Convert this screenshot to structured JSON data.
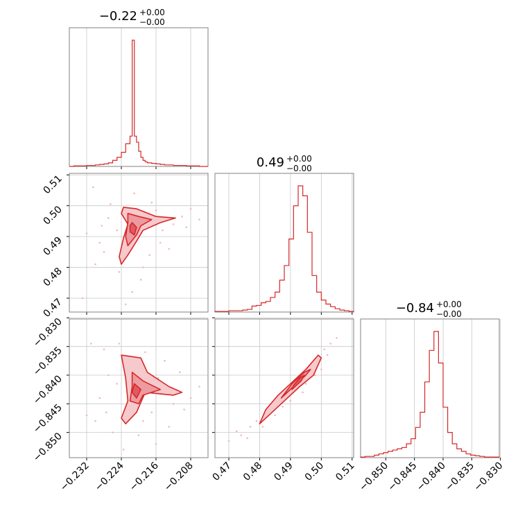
{
  "colors": {
    "accent": "#d62728",
    "fill_light": "#f6c9cc",
    "fill_mid": "#ec9ba0",
    "fill_dark": "#df5a62",
    "scatter": "#f2b8bb"
  },
  "chart_data": {
    "type": "corner",
    "parameters": [
      {
        "id": "p1",
        "title": {
          "value": "−0.22",
          "sup": "+0.00",
          "sub": "−0.00"
        },
        "range": [
          -0.236,
          -0.204
        ],
        "ticks": [
          -0.232,
          -0.224,
          -0.216,
          -0.208
        ],
        "tick_labels": [
          "−0.232",
          "−0.224",
          "−0.216",
          "−0.208"
        ]
      },
      {
        "id": "p2",
        "title": {
          "value": "0.49",
          "sup": "+0.00",
          "sub": "−0.00"
        },
        "range": [
          0.4655,
          0.5105
        ],
        "ticks": [
          0.47,
          0.48,
          0.49,
          0.5,
          0.51
        ],
        "tick_labels": [
          "0.47",
          "0.48",
          "0.49",
          "0.50",
          "0.51"
        ]
      },
      {
        "id": "p3",
        "title": {
          "value": "−0.84",
          "sup": "+0.00",
          "sub": "−0.00"
        },
        "range": [
          -0.8544,
          -0.8302
        ],
        "ticks": [
          -0.85,
          -0.845,
          -0.84,
          -0.835,
          -0.83
        ],
        "tick_labels": [
          "−0.850",
          "−0.845",
          "−0.840",
          "−0.835",
          "−0.830"
        ]
      }
    ],
    "histograms": [
      {
        "param": "p1",
        "bins": [
          -0.236,
          -0.235,
          -0.234,
          -0.233,
          -0.232,
          -0.231,
          -0.23,
          -0.229,
          -0.228,
          -0.227,
          -0.226,
          -0.225,
          -0.224,
          -0.223,
          -0.222,
          -0.2215,
          -0.221,
          -0.2205,
          -0.22,
          -0.2195,
          -0.219,
          -0.2185,
          -0.218,
          -0.217,
          -0.216,
          -0.215,
          -0.214,
          -0.213,
          -0.212,
          -0.211,
          -0.21,
          -0.209,
          -0.208,
          -0.207,
          -0.206,
          -0.205,
          -0.204
        ],
        "counts": [
          0,
          1,
          1,
          1,
          2,
          2,
          3,
          4,
          5,
          7,
          12,
          18,
          28,
          45,
          60,
          250,
          60,
          48,
          30,
          18,
          12,
          9,
          7,
          6,
          5,
          4,
          3,
          3,
          2,
          2,
          2,
          1,
          1,
          1,
          0,
          0
        ]
      },
      {
        "param": "p2",
        "bins": [
          0.4655,
          0.467,
          0.4685,
          0.47,
          0.4715,
          0.473,
          0.4745,
          0.476,
          0.4775,
          0.479,
          0.4805,
          0.482,
          0.4835,
          0.485,
          0.4865,
          0.488,
          0.4895,
          0.491,
          0.4925,
          0.494,
          0.4955,
          0.497,
          0.4985,
          0.5,
          0.5015,
          0.503,
          0.5045,
          0.506,
          0.5075,
          0.509,
          0.5105
        ],
        "counts": [
          1,
          1,
          1,
          2,
          2,
          2,
          3,
          4,
          9,
          10,
          14,
          16,
          22,
          30,
          48,
          70,
          110,
          160,
          190,
          175,
          120,
          55,
          30,
          18,
          12,
          8,
          5,
          3,
          2,
          1
        ]
      },
      {
        "param": "p3",
        "bins": [
          -0.8544,
          -0.8536,
          -0.8528,
          -0.852,
          -0.8512,
          -0.8504,
          -0.8496,
          -0.8488,
          -0.848,
          -0.8472,
          -0.8464,
          -0.8456,
          -0.8448,
          -0.844,
          -0.8432,
          -0.8424,
          -0.8416,
          -0.8408,
          -0.84,
          -0.8392,
          -0.8384,
          -0.8376,
          -0.8368,
          -0.836,
          -0.8352,
          -0.8344,
          -0.8336,
          -0.8328,
          -0.832,
          -0.8312,
          -0.8302
        ],
        "counts": [
          1,
          2,
          2,
          4,
          6,
          8,
          10,
          12,
          14,
          16,
          22,
          30,
          48,
          72,
          120,
          170,
          200,
          150,
          80,
          40,
          22,
          14,
          10,
          6,
          4,
          3,
          2,
          1,
          1,
          1
        ]
      }
    ],
    "contours_2d": [
      {
        "x_param": "p1",
        "y_param": "p2",
        "levels": [
          [
            [
              -0.2235,
              0.4995
            ],
            [
              -0.2205,
              0.499
            ],
            [
              -0.216,
              0.4965
            ],
            [
              -0.2115,
              0.496
            ],
            [
              -0.215,
              0.4945
            ],
            [
              -0.219,
              0.492
            ],
            [
              -0.2205,
              0.4885
            ],
            [
              -0.2225,
              0.484
            ],
            [
              -0.224,
              0.481
            ],
            [
              -0.2245,
              0.4835
            ],
            [
              -0.2235,
              0.4895
            ],
            [
              -0.2225,
              0.494
            ],
            [
              -0.224,
              0.4975
            ]
          ],
          [
            [
              -0.2225,
              0.4975
            ],
            [
              -0.22,
              0.4965
            ],
            [
              -0.217,
              0.4955
            ],
            [
              -0.2195,
              0.4935
            ],
            [
              -0.2205,
              0.4905
            ],
            [
              -0.2225,
              0.487
            ],
            [
              -0.223,
              0.49
            ],
            [
              -0.2225,
              0.4945
            ]
          ],
          [
            [
              -0.2215,
              0.4945
            ],
            [
              -0.2205,
              0.493
            ],
            [
              -0.221,
              0.4905
            ],
            [
              -0.222,
              0.4915
            ],
            [
              -0.222,
              0.4935
            ]
          ]
        ],
        "points": [
          [
            -0.2305,
            0.506
          ],
          [
            -0.228,
            0.485
          ],
          [
            -0.233,
            0.47
          ],
          [
            -0.2265,
            0.5005
          ],
          [
            -0.23,
            0.481
          ],
          [
            -0.217,
            0.501
          ],
          [
            -0.215,
            0.488
          ],
          [
            -0.212,
            0.494
          ],
          [
            -0.21,
            0.4965
          ],
          [
            -0.209,
            0.493
          ],
          [
            -0.219,
            0.48
          ],
          [
            -0.225,
            0.492
          ],
          [
            -0.227,
            0.496
          ],
          [
            -0.232,
            0.491
          ],
          [
            -0.221,
            0.504
          ],
          [
            -0.2195,
            0.476
          ],
          [
            -0.2245,
            0.4785
          ],
          [
            -0.213,
            0.486
          ],
          [
            -0.208,
            0.499
          ],
          [
            -0.2215,
            0.472
          ],
          [
            -0.2285,
            0.4935
          ],
          [
            -0.216,
            0.4985
          ],
          [
            -0.223,
            0.468
          ],
          [
            -0.2175,
            0.484
          ],
          [
            -0.206,
            0.4955
          ],
          [
            -0.229,
            0.488
          ],
          [
            -0.2205,
            0.498
          ],
          [
            -0.2145,
            0.492
          ]
        ]
      },
      {
        "x_param": "p1",
        "y_param": "p3",
        "levels": [
          [
            [
              -0.224,
              -0.8365
            ],
            [
              -0.2195,
              -0.837
            ],
            [
              -0.218,
              -0.8395
            ],
            [
              -0.213,
              -0.842
            ],
            [
              -0.21,
              -0.843
            ],
            [
              -0.212,
              -0.8435
            ],
            [
              -0.2185,
              -0.843
            ],
            [
              -0.2205,
              -0.8465
            ],
            [
              -0.223,
              -0.8485
            ],
            [
              -0.224,
              -0.8475
            ],
            [
              -0.2225,
              -0.8445
            ],
            [
              -0.223,
              -0.8405
            ],
            [
              -0.2235,
              -0.8385
            ]
          ],
          [
            [
              -0.2215,
              -0.8395
            ],
            [
              -0.219,
              -0.841
            ],
            [
              -0.215,
              -0.8425
            ],
            [
              -0.219,
              -0.8435
            ],
            [
              -0.22,
              -0.845
            ],
            [
              -0.222,
              -0.8445
            ],
            [
              -0.2215,
              -0.842
            ]
          ],
          [
            [
              -0.221,
              -0.8415
            ],
            [
              -0.2195,
              -0.8425
            ],
            [
              -0.2205,
              -0.844
            ],
            [
              -0.2215,
              -0.843
            ]
          ]
        ],
        "points": [
          [
            -0.231,
            -0.8345
          ],
          [
            -0.228,
            -0.8355
          ],
          [
            -0.23,
            -0.848
          ],
          [
            -0.226,
            -0.85
          ],
          [
            -0.214,
            -0.8375
          ],
          [
            -0.212,
            -0.845
          ],
          [
            -0.208,
            -0.844
          ],
          [
            -0.206,
            -0.842
          ],
          [
            -0.225,
            -0.8415
          ],
          [
            -0.227,
            -0.84
          ],
          [
            -0.217,
            -0.8465
          ],
          [
            -0.22,
            -0.8505
          ],
          [
            -0.2235,
            -0.853
          ],
          [
            -0.2155,
            -0.8405
          ],
          [
            -0.229,
            -0.844
          ],
          [
            -0.2105,
            -0.8395
          ],
          [
            -0.2185,
            -0.836
          ],
          [
            -0.232,
            -0.847
          ],
          [
            -0.2245,
            -0.8345
          ],
          [
            -0.213,
            -0.849
          ],
          [
            -0.216,
            -0.852
          ],
          [
            -0.2275,
            -0.8465
          ],
          [
            -0.2095,
            -0.846
          ],
          [
            -0.219,
            -0.848
          ]
        ]
      },
      {
        "x_param": "p2",
        "y_param": "p3",
        "levels": [
          [
            [
              0.48,
              -0.8485
            ],
            [
              0.483,
              -0.847
            ],
            [
              0.488,
              -0.8445
            ],
            [
              0.493,
              -0.842
            ],
            [
              0.4975,
              -0.84
            ],
            [
              0.5,
              -0.837
            ],
            [
              0.499,
              -0.8365
            ],
            [
              0.495,
              -0.839
            ],
            [
              0.491,
              -0.841
            ],
            [
              0.486,
              -0.8435
            ],
            [
              0.482,
              -0.846
            ]
          ],
          [
            [
              0.487,
              -0.844
            ],
            [
              0.491,
              -0.842
            ],
            [
              0.495,
              -0.84
            ],
            [
              0.4965,
              -0.839
            ],
            [
              0.4945,
              -0.8395
            ],
            [
              0.4905,
              -0.8415
            ]
          ],
          [
            [
              0.4905,
              -0.8425
            ],
            [
              0.4935,
              -0.841
            ],
            [
              0.4945,
              -0.84
            ],
            [
              0.493,
              -0.8405
            ],
            [
              0.491,
              -0.8418
            ]
          ]
        ],
        "points": [
          [
            0.47,
            -0.8515
          ],
          [
            0.474,
            -0.8505
          ],
          [
            0.477,
            -0.849
          ],
          [
            0.479,
            -0.848
          ],
          [
            0.4835,
            -0.8458
          ],
          [
            0.486,
            -0.845
          ],
          [
            0.489,
            -0.843
          ],
          [
            0.492,
            -0.841
          ],
          [
            0.496,
            -0.8385
          ],
          [
            0.4985,
            -0.837
          ],
          [
            0.501,
            -0.8355
          ],
          [
            0.503,
            -0.8345
          ],
          [
            0.505,
            -0.8335
          ],
          [
            0.481,
            -0.849
          ],
          [
            0.485,
            -0.847
          ],
          [
            0.4875,
            -0.8455
          ],
          [
            0.494,
            -0.843
          ],
          [
            0.498,
            -0.84
          ],
          [
            0.5,
            -0.839
          ],
          [
            0.476,
            -0.851
          ],
          [
            0.49,
            -0.8445
          ],
          [
            0.495,
            -0.8415
          ],
          [
            0.502,
            -0.8365
          ],
          [
            0.4725,
            -0.8498
          ]
        ]
      }
    ],
    "grid": true,
    "legend": "none"
  }
}
